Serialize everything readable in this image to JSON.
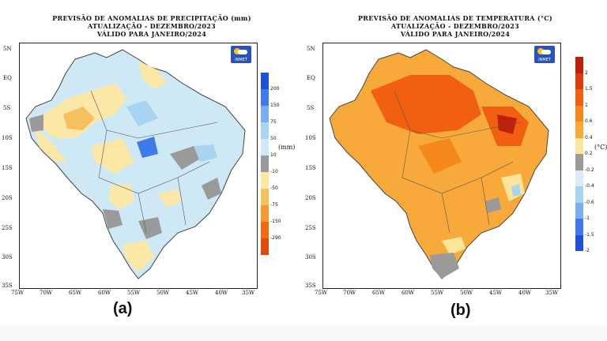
{
  "panels": {
    "a": {
      "title": [
        "PREVISÃO DE ANOMALIAS DE PRECIPITAÇÃO (mm)",
        "ATUALIZAÇÃO - DEZEMBRO/2023",
        "VÁLIDO PARA JANEIRO/2024"
      ],
      "unit": "(mm)",
      "label": "(a)",
      "colorbar": {
        "labels": [
          "200",
          "150",
          "75",
          "50",
          "10",
          "-10",
          "-50",
          "-75",
          "-150",
          "-290"
        ],
        "colors": [
          "#2050d8",
          "#3f7be8",
          "#79aef0",
          "#a8d4f2",
          "#cfe8f5",
          "#9a9a9a",
          "#fbe8a6",
          "#f5c060",
          "#f39a30",
          "#f06a10",
          "#e34a0a"
        ]
      }
    },
    "b": {
      "title": [
        "PREVISÃO DE ANOMALIAS DE TEMPERATURA (°C)",
        "ATUALIZAÇÃO - DEZEMBRO/2023",
        "VÁLIDO PARA JANEIRO/2024"
      ],
      "unit": "(°C)",
      "label": "(b)",
      "colorbar": {
        "labels": [
          "2",
          "1.5",
          "1",
          "0.6",
          "0.4",
          "0.2",
          "-0.2",
          "-0.4",
          "-0.6",
          "-1",
          "-1.5",
          "-2"
        ],
        "colors": [
          "#c0200a",
          "#e03a10",
          "#f06010",
          "#f5881a",
          "#f7aa3a",
          "#fbe59a",
          "#9a9a9a",
          "#d8ecf5",
          "#a8d4f2",
          "#79aef0",
          "#3f7be8",
          "#2050d8"
        ]
      }
    }
  },
  "lat_ticks": [
    "5N",
    "EQ",
    "5S",
    "10S",
    "15S",
    "20S",
    "25S",
    "30S",
    "35S"
  ],
  "lon_ticks": [
    "75W",
    "70W",
    "65W",
    "60W",
    "55W",
    "50W",
    "45W",
    "40W",
    "35W"
  ],
  "logo_text": "INMET"
}
